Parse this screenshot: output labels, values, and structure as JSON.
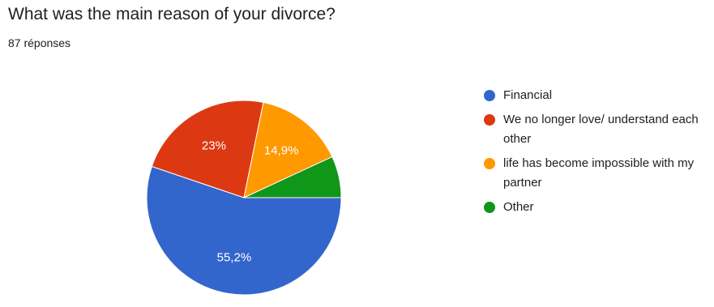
{
  "title": "What was the main reason of your divorce?",
  "subtitle": "87 réponses",
  "chart_data": {
    "type": "pie",
    "title": "What was the main reason of your divorce?",
    "categories": [
      "Financial",
      "We no longer love/ understand each other",
      "life has become impossible with my partner",
      "Other"
    ],
    "values": [
      55.2,
      23,
      14.9,
      6.9
    ],
    "data_labels": [
      "55,2%",
      "23%",
      "14,9%",
      ""
    ],
    "colors": [
      "#3366cc",
      "#dc3912",
      "#ff9900",
      "#109618"
    ],
    "legend_position": "right",
    "legend_wrapped": [
      [
        "Financial"
      ],
      [
        "We no longer love/ understand each",
        "other"
      ],
      [
        "life has become impossible with my",
        "partner"
      ],
      [
        "Other"
      ]
    ]
  }
}
